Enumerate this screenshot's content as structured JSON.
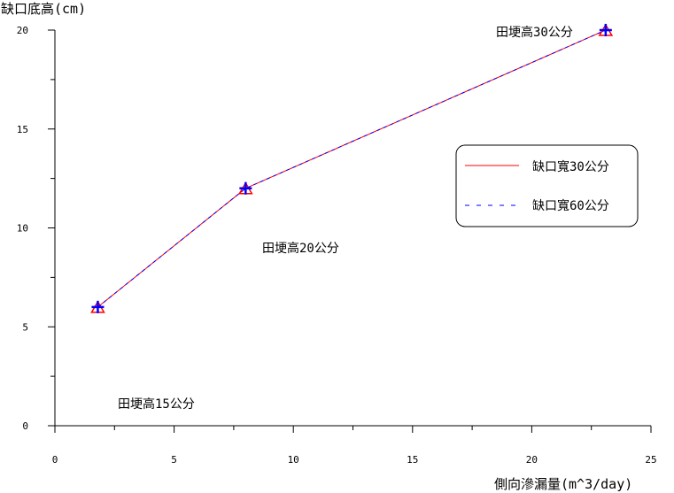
{
  "chart_data": {
    "type": "line",
    "ylabel": "缺口底高(cm)",
    "xlabel": "側向滲漏量(m^3/day)",
    "xlim": [
      0,
      25
    ],
    "ylim": [
      0,
      20
    ],
    "x_ticks": [
      0,
      5,
      10,
      15,
      20,
      25
    ],
    "y_ticks": [
      0,
      5,
      10,
      15,
      20
    ],
    "x_tick_labels": [
      "0",
      "5",
      "10",
      "15",
      "20",
      "25"
    ],
    "y_tick_labels": [
      "0",
      "5",
      "10",
      "15",
      "20"
    ],
    "grid": false,
    "legend_position": "right",
    "series": [
      {
        "name": "缺口寬30公分",
        "color": "#ff0000",
        "line": "solid",
        "marker": "triangle",
        "x": [
          1.8,
          8.0,
          23.1
        ],
        "y": [
          6,
          12,
          20
        ]
      },
      {
        "name": "缺口寬60公分",
        "color": "#0000ff",
        "line": "dashed",
        "marker": "plus",
        "x": [
          1.8,
          8.0,
          23.1
        ],
        "y": [
          6,
          12,
          20
        ]
      }
    ],
    "annotations": [
      "田埂高15公分",
      "田埂高20公分",
      "田埂高30公分"
    ]
  }
}
